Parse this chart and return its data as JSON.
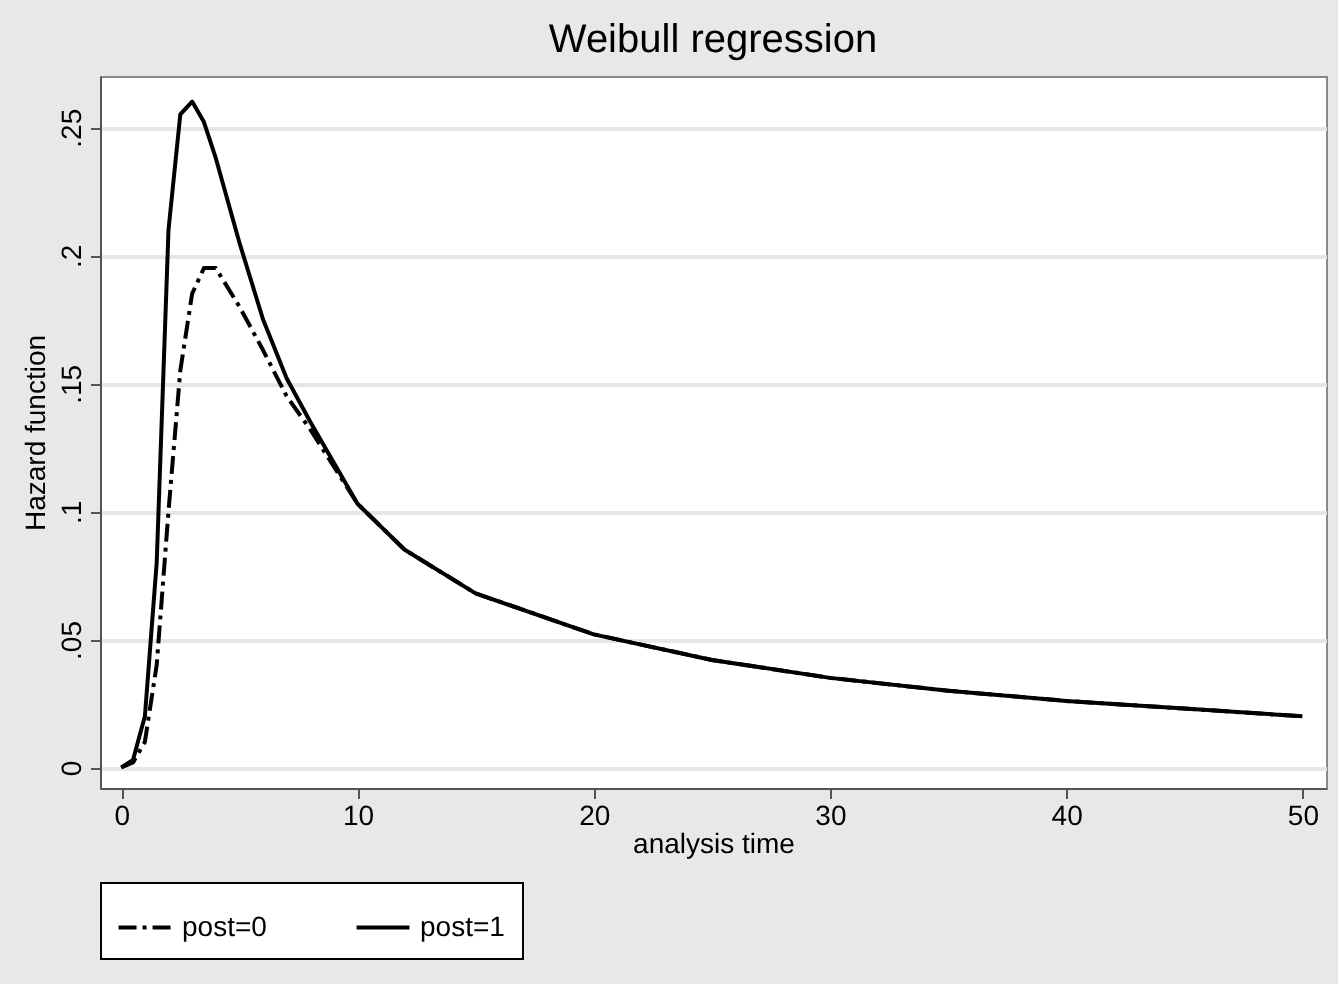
{
  "chart_data": {
    "type": "line",
    "title": "Weibull regression",
    "xlabel": "analysis time",
    "ylabel": "Hazard function",
    "xlim": [
      -0.9,
      51
    ],
    "ylim": [
      -0.008,
      0.27
    ],
    "xticks": [
      0,
      10,
      20,
      30,
      40,
      50
    ],
    "yticks": [
      0,
      {
        "value": 0.05,
        "label": ".05"
      },
      {
        "value": 0.1,
        "label": ".1"
      },
      {
        "value": 0.15,
        "label": ".15"
      },
      {
        "value": 0.2,
        "label": ".2"
      },
      {
        "value": 0.25,
        "label": ".25"
      }
    ],
    "grid": "y",
    "legend": "bottom",
    "series": [
      {
        "name": "post=0",
        "color": "#000000",
        "line_style": "dashdot",
        "x": [
          0,
          0.5,
          1,
          1.5,
          2,
          2.5,
          3,
          3.5,
          4,
          5,
          6,
          7,
          8,
          10,
          12,
          15,
          20,
          25,
          30,
          35,
          40,
          45,
          50
        ],
        "values": [
          0,
          0.002,
          0.01,
          0.04,
          0.1,
          0.155,
          0.185,
          0.195,
          0.195,
          0.18,
          0.163,
          0.145,
          0.132,
          0.103,
          0.085,
          0.068,
          0.052,
          0.042,
          0.035,
          0.03,
          0.026,
          0.023,
          0.02
        ]
      },
      {
        "name": "post=1",
        "color": "#000000",
        "line_style": "solid",
        "x": [
          0,
          0.5,
          1,
          1.5,
          2,
          2.5,
          3,
          3.5,
          4,
          5,
          6,
          7,
          8,
          10,
          12,
          15,
          20,
          25,
          30,
          35,
          40,
          45,
          50
        ],
        "values": [
          0,
          0.003,
          0.02,
          0.08,
          0.21,
          0.255,
          0.26,
          0.252,
          0.238,
          0.205,
          0.175,
          0.152,
          0.135,
          0.103,
          0.085,
          0.068,
          0.052,
          0.042,
          0.035,
          0.03,
          0.026,
          0.023,
          0.02
        ]
      }
    ]
  }
}
